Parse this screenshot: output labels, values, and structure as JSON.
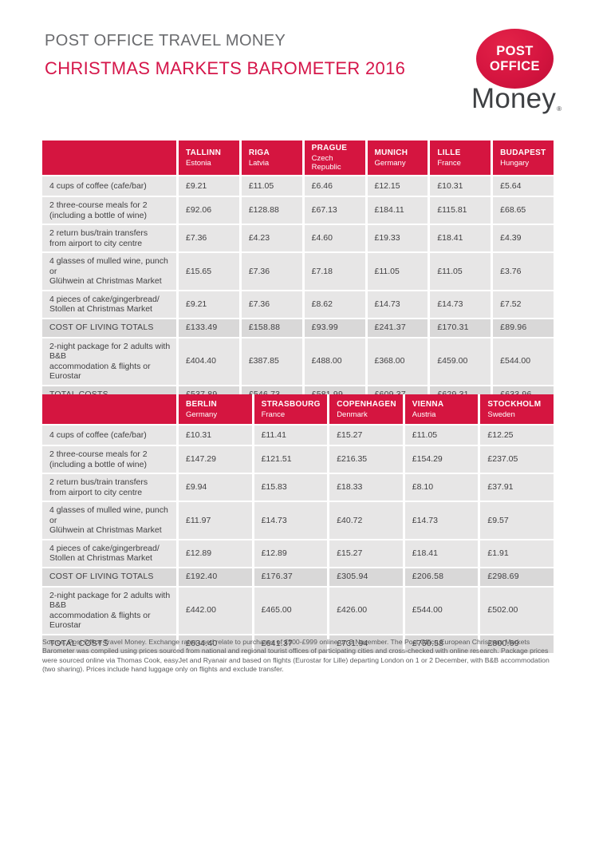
{
  "header": {
    "title": "POST OFFICE TRAVEL MONEY",
    "subtitle": "CHRISTMAS MARKETS BAROMETER 2016",
    "logo": {
      "oval_line1": "POST",
      "oval_line2": "OFFICE",
      "wordmark": "Money",
      "registered_mark": "®"
    }
  },
  "colors": {
    "brand_crimson": "#d51540",
    "subtitle_red": "#d5164a",
    "title_gray": "#6a6b6e",
    "row_bg": "#e7e6e6",
    "total_row_bg": "#d9d8d8",
    "body_text": "#414042",
    "wordmark_gray": "#3e4043"
  },
  "tables": [
    {
      "columns": [
        {
          "city": "TALLINN",
          "country": "Estonia"
        },
        {
          "city": "RIGA",
          "country": "Latvia"
        },
        {
          "city": "PRAGUE",
          "country": "Czech Republic"
        },
        {
          "city": "MUNICH",
          "country": "Germany"
        },
        {
          "city": "LILLE",
          "country": "France"
        },
        {
          "city": "BUDAPEST",
          "country": "Hungary"
        }
      ],
      "rows": [
        {
          "label": "4 cups of coffee (cafe/bar)",
          "type": "item",
          "values": [
            "£9.21",
            "£11.05",
            "£6.46",
            "£12.15",
            "£10.31",
            "£5.64"
          ]
        },
        {
          "label": "2 three-course meals for 2\n(including a bottle of wine)",
          "type": "item",
          "values": [
            "£92.06",
            "£128.88",
            "£67.13",
            "£184.11",
            "£115.81",
            "£68.65"
          ]
        },
        {
          "label": "2 return bus/train transfers\nfrom airport to city centre",
          "type": "item",
          "values": [
            "£7.36",
            "£4.23",
            "£4.60",
            "£19.33",
            "£18.41",
            "£4.39"
          ]
        },
        {
          "label": "4 glasses of mulled wine, punch or\nGlühwein at Christmas Market",
          "type": "item",
          "values": [
            "£15.65",
            "£7.36",
            "£7.18",
            "£11.05",
            "£11.05",
            "£3.76"
          ]
        },
        {
          "label": "4 pieces of cake/gingerbread/\nStollen at Christmas Market",
          "type": "item",
          "values": [
            "£9.21",
            "£7.36",
            "£8.62",
            "£14.73",
            "£14.73",
            "£7.52"
          ]
        },
        {
          "label": "COST OF LIVING TOTALS",
          "type": "total",
          "values": [
            "£133.49",
            "£158.88",
            "£93.99",
            "£241.37",
            "£170.31",
            "£89.96"
          ]
        },
        {
          "label": "2-night package for 2 adults with B&B\naccommodation & flights or Eurostar",
          "type": "item",
          "values": [
            "£404.40",
            "£387.85",
            "£488.00",
            "£368.00",
            "£459.00",
            "£544.00"
          ]
        },
        {
          "label": "TOTAL COSTS",
          "type": "total",
          "values": [
            "£537.89",
            "£546.73",
            "£581.99",
            "£609.37",
            "£629.31",
            "£633.96"
          ]
        }
      ]
    },
    {
      "columns": [
        {
          "city": "BERLIN",
          "country": "Germany"
        },
        {
          "city": "STRASBOURG",
          "country": "France"
        },
        {
          "city": "COPENHAGEN",
          "country": "Denmark"
        },
        {
          "city": "VIENNA",
          "country": "Austria"
        },
        {
          "city": "STOCKHOLM",
          "country": "Sweden"
        }
      ],
      "rows": [
        {
          "label": "4 cups of coffee (cafe/bar)",
          "type": "item",
          "values": [
            "£10.31",
            "£11.41",
            "£15.27",
            "£11.05",
            "£12.25"
          ]
        },
        {
          "label": "2 three-course meals for 2\n(including a bottle of wine)",
          "type": "item",
          "values": [
            "£147.29",
            "£121.51",
            "£216.35",
            "£154.29",
            "£237.05"
          ]
        },
        {
          "label": "2 return bus/train transfers\nfrom airport to city centre",
          "type": "item",
          "values": [
            "£9.94",
            "£15.83",
            "£18.33",
            "£8.10",
            "£37.91"
          ]
        },
        {
          "label": "4 glasses of mulled wine, punch or\nGlühwein at Christmas Market",
          "type": "item",
          "values": [
            "£11.97",
            "£14.73",
            "£40.72",
            "£14.73",
            "£9.57"
          ]
        },
        {
          "label": "4 pieces of cake/gingerbread/\nStollen at Christmas Market",
          "type": "item",
          "values": [
            "£12.89",
            "£12.89",
            "£15.27",
            "£18.41",
            "£1.91"
          ]
        },
        {
          "label": "COST OF LIVING TOTALS",
          "type": "total",
          "values": [
            "£192.40",
            "£176.37",
            "£305.94",
            "£206.58",
            "£298.69"
          ]
        },
        {
          "label": "2-night package for 2 adults with B&B\naccommodation & flights or Eurostar",
          "type": "item",
          "values": [
            "£442.00",
            "£465.00",
            "£426.00",
            "£544.00",
            "£502.00"
          ]
        },
        {
          "label": "TOTAL COSTS",
          "type": "total",
          "values": [
            "£634.40",
            "£641.37",
            "£731.94",
            "£750.58",
            "£800.69"
          ]
        }
      ]
    }
  ],
  "footnote": "Source: Post Office Travel Money. Exchange rates used relate to purchases of £500-£999 online on 3 November. The Post Office European Christmas Markets Barometer was compiled using prices sourced from national and regional tourist offices of participating cities and cross-checked with online research. Package prices were sourced online via Thomas Cook, easyJet and Ryanair and based on flights (Eurostar for Lille) departing London on 1 or 2 December, with B&B accommodation (two sharing). Prices include hand luggage only on flights and exclude transfer."
}
